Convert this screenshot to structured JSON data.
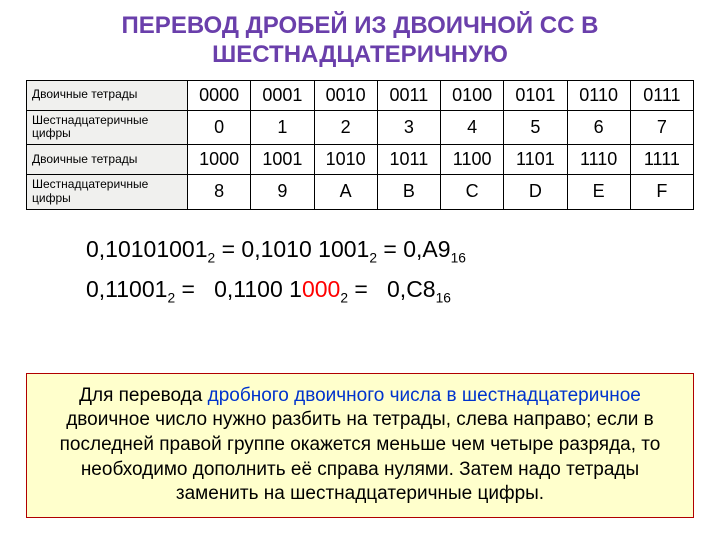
{
  "title_color": "#6A3FAB",
  "title_line1": "ПЕРЕВОД ДРОБЕЙ ИЗ ДВОИЧНОЙ СС В",
  "title_line2": "ШЕСТНАДЦАТЕРИЧНУЮ",
  "table": {
    "row_header_bin": "Двоичные тетрады",
    "row_header_hex": "Шестнадцатеричные цифры",
    "bin1": [
      "0000",
      "0001",
      "0010",
      "0011",
      "0100",
      "0101",
      "0110",
      "0111"
    ],
    "hex1": [
      "0",
      "1",
      "2",
      "3",
      "4",
      "5",
      "6",
      "7"
    ],
    "bin2": [
      "1000",
      "1001",
      "1010",
      "1011",
      "1100",
      "1101",
      "1110",
      "1111"
    ],
    "hex2": [
      "8",
      "9",
      "A",
      "B",
      "C",
      "D",
      "E",
      "F"
    ]
  },
  "ex1": {
    "a": "0,10101001",
    "a_sub": "2",
    "eq1": " = ",
    "b": "0,1010 1001",
    "b_sub": "2",
    "eq2": " = ",
    "c": "0,A9",
    "c_sub": "16"
  },
  "ex2": {
    "a": "0,11001",
    "a_sub": "2",
    "eq1": " = ",
    "b1": "0,1100 1",
    "b_red": "000",
    "b_sub": "2",
    "eq2": " = ",
    "c": "0,C8",
    "c_sub": "16"
  },
  "explain": {
    "pre": "Для перевода ",
    "hi": "дробного двоичного числа в шестнадцатеричное",
    "rest": " двоичное число нужно разбить на тетрады, слева направо; если в последней правой группе окажется меньше чем четыре разряда, то необходимо дополнить её справа нулями. Затем надо тетрады заменить на шестнадцатеричные цифры."
  }
}
